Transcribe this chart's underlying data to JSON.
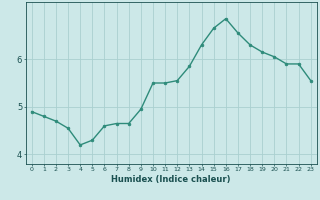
{
  "x": [
    0,
    1,
    2,
    3,
    4,
    5,
    6,
    7,
    8,
    9,
    10,
    11,
    12,
    13,
    14,
    15,
    16,
    17,
    18,
    19,
    20,
    21,
    22,
    23
  ],
  "y": [
    4.9,
    4.8,
    4.7,
    4.55,
    4.2,
    4.3,
    4.6,
    4.65,
    4.65,
    4.95,
    5.5,
    5.5,
    5.55,
    5.85,
    6.3,
    6.65,
    6.85,
    6.55,
    6.3,
    6.15,
    6.05,
    5.9,
    5.9,
    5.55
  ],
  "xlabel": "Humidex (Indice chaleur)",
  "xlim": [
    -0.5,
    23.5
  ],
  "ylim": [
    3.8,
    7.2
  ],
  "yticks": [
    4,
    5,
    6
  ],
  "xticks": [
    0,
    1,
    2,
    3,
    4,
    5,
    6,
    7,
    8,
    9,
    10,
    11,
    12,
    13,
    14,
    15,
    16,
    17,
    18,
    19,
    20,
    21,
    22,
    23
  ],
  "line_color": "#2e8b7a",
  "marker_color": "#2e8b7a",
  "bg_color": "#cce8e8",
  "grid_color": "#aad0d0",
  "label_color": "#1a5050",
  "tick_color": "#1a5050"
}
